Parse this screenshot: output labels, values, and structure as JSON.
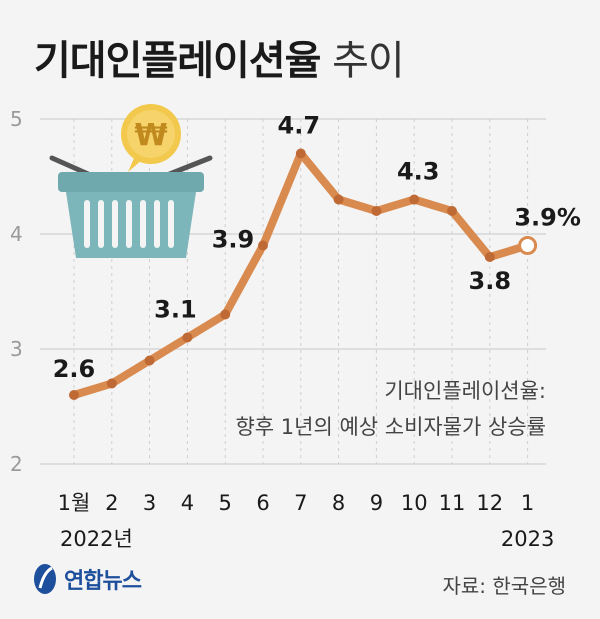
{
  "title_strong": "기대인플레이션율",
  "title_light": "추이",
  "chart_data": {
    "type": "line",
    "title": "기대인플레이션율 추이",
    "categories": [
      "1월",
      "2",
      "3",
      "4",
      "5",
      "6",
      "7",
      "8",
      "9",
      "10",
      "11",
      "12",
      "1"
    ],
    "year_labels": [
      {
        "text": "2022년",
        "category_index": 0
      },
      {
        "text": "2023",
        "category_index": 12
      }
    ],
    "values": [
      2.6,
      2.7,
      2.9,
      3.1,
      3.3,
      3.9,
      4.7,
      4.3,
      4.2,
      4.3,
      4.2,
      3.8,
      3.9
    ],
    "data_labels": [
      {
        "index": 0,
        "text": "2.6"
      },
      {
        "index": 3,
        "text": "3.1"
      },
      {
        "index": 5,
        "text": "3.9"
      },
      {
        "index": 6,
        "text": "4.7"
      },
      {
        "index": 9,
        "text": "4.3"
      },
      {
        "index": 11,
        "text": "3.8"
      },
      {
        "index": 12,
        "text": "3.9%"
      }
    ],
    "yticks": [
      2,
      3,
      4,
      5
    ],
    "ylim": [
      2,
      5
    ],
    "grid": true,
    "annotation": [
      "기대인플레이션율:",
      "향후 1년의 예상 소비자물가 상승률"
    ],
    "line_color": "#d98a4f",
    "marker_color": "#bf6a35",
    "last_marker_fill": "#ffffff"
  },
  "footer": {
    "source": "자료: 한국은행",
    "logo_text": "연합뉴스"
  }
}
